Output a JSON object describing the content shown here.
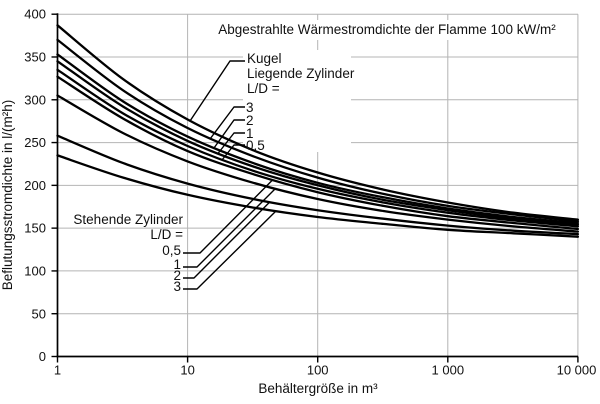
{
  "title": "Abgestrahlte Wärmestromdichte der Flamme 100 kW/m²",
  "axes": {
    "x_label": "Behältergröße in m³",
    "y_label": "Beflutungsstromdichte in l/(m²h)",
    "y_tick_labels": [
      "400",
      "350",
      "300",
      "250",
      "200",
      "150",
      "100",
      "50",
      "0"
    ],
    "x_tick_labels": [
      "1",
      "10",
      "100",
      "1 000",
      "10 000"
    ]
  },
  "annotations": {
    "kugel": "Kugel",
    "liegende": "Liegende Zylinder",
    "ld_eq_top": "L/D =",
    "top_values": [
      "3",
      "2",
      "1",
      "0,5"
    ],
    "stehende": "Stehende Zylinder",
    "ld_eq_bottom": "L/D =",
    "bottom_values": [
      "0,5",
      "1",
      "2",
      "3"
    ]
  },
  "colors": {
    "curve": "#000000",
    "grid": "#b4b4b4",
    "text": "#111111",
    "background": "#ffffff"
  },
  "chart_data": {
    "type": "line",
    "xscale": "log",
    "xlim": [
      1,
      10000
    ],
    "ylim": [
      0,
      400
    ],
    "xlabel": "Behältergröße in m³",
    "ylabel": "Beflutungsstromdichte in l/(m²h)",
    "title": "Abgestrahlte Wärmestromdichte der Flamme 100 kW/m²",
    "grid": {
      "y": [
        50,
        100,
        150,
        200,
        250,
        300,
        350,
        400
      ],
      "x": [
        10,
        100,
        1000,
        10000
      ]
    },
    "y_tick_values": [
      0,
      50,
      100,
      150,
      200,
      250,
      300,
      350,
      400
    ],
    "x_tick_values": [
      1,
      10,
      100,
      1000,
      10000
    ],
    "x": [
      1,
      3.2,
      10,
      32,
      100,
      320,
      1000,
      3200,
      10000
    ],
    "series": [
      {
        "name": "Kugel",
        "values": [
          387,
          324,
          277,
          241,
          215,
          195,
          180,
          168,
          160
        ]
      },
      {
        "name": "Liegende Zylinder L/D = 3",
        "values": [
          370,
          311,
          267,
          234,
          209,
          190,
          176,
          166,
          158
        ]
      },
      {
        "name": "Liegende Zylinder L/D = 2",
        "values": [
          353,
          298,
          257,
          226,
          203,
          186,
          173,
          163,
          156
        ]
      },
      {
        "name": "Liegende Zylinder L/D = 1",
        "values": [
          345,
          292,
          252,
          222,
          200,
          183,
          171,
          161,
          154
        ]
      },
      {
        "name": "Liegende Zylinder L/D = 0,5",
        "values": [
          335,
          284,
          246,
          217,
          196,
          180,
          168,
          159,
          152
        ]
      },
      {
        "name": "Stehende Zylinder L/D = 0,5",
        "values": [
          327,
          278,
          240,
          213,
          192,
          176,
          164,
          156,
          149
        ]
      },
      {
        "name": "Stehende Zylinder L/D = 1",
        "values": [
          305,
          261,
          228,
          203,
          184,
          170,
          160,
          152,
          146
        ]
      },
      {
        "name": "Stehende Zylinder L/D = 2",
        "values": [
          258,
          226,
          202,
          184,
          171,
          161,
          153,
          147,
          143
        ]
      },
      {
        "name": "Stehende Zylinder L/D = 3",
        "values": [
          235,
          209,
          189,
          174,
          163,
          155,
          148,
          144,
          140
        ]
      }
    ]
  }
}
